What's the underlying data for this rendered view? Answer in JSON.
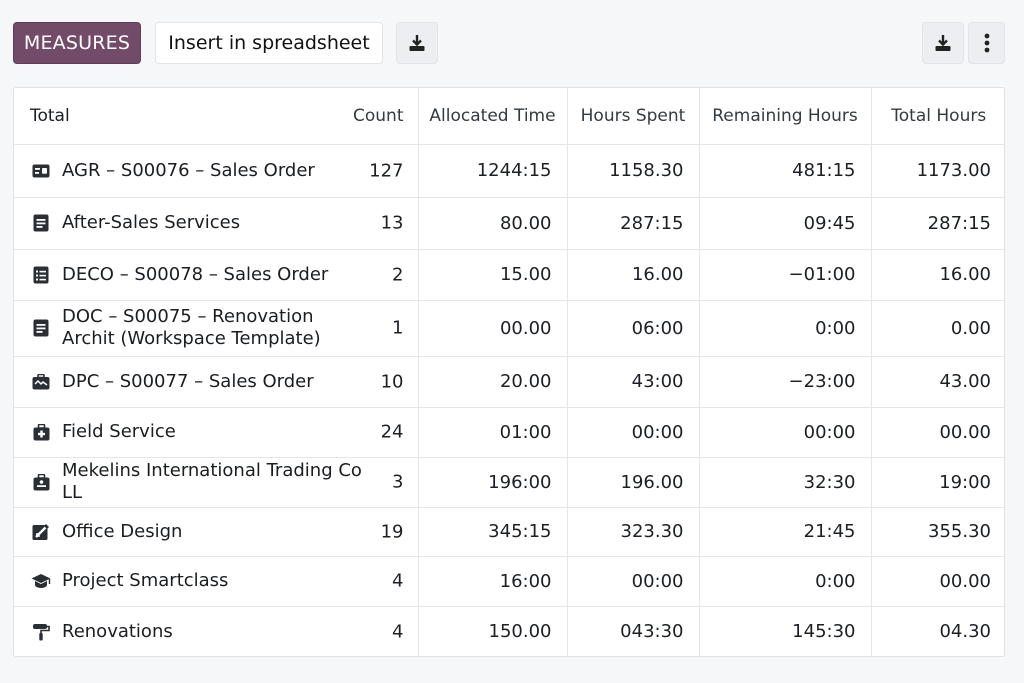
{
  "toolbar": {
    "measures_label": "MEASURES",
    "insert_label": "Insert in spreadsheet",
    "download_icon": "download-icon",
    "more_icon": "kebab-menu-icon"
  },
  "table": {
    "headers": {
      "total": "Total",
      "count": "Count",
      "allocated": "Allocated Time",
      "spent": "Hours Spent",
      "remaining": "Remaining Hours",
      "total_hours": "Total Hours"
    },
    "rows": [
      {
        "icon": "id-card-icon",
        "name": "AGR – S00076 – Sales Order",
        "count": "127",
        "allocated": "1244:15",
        "spent": "1158.30",
        "remaining": "481:15",
        "total_hours": "1173.00"
      },
      {
        "icon": "document-icon",
        "name": "After-Sales Services",
        "count": "13",
        "allocated": "80.00",
        "spent": "287:15",
        "remaining": "09:45",
        "total_hours": "287:15"
      },
      {
        "icon": "list-document-icon",
        "name": "DECO – S00078 – Sales Order",
        "count": "2",
        "allocated": "15.00",
        "spent": "16.00",
        "remaining": "−01:00",
        "total_hours": "16.00"
      },
      {
        "icon": "document-icon",
        "name": "DOC – S00075 – Renovation Archit (Workspace Template)",
        "count": "1",
        "allocated": "00.00",
        "spent": "06:00",
        "remaining": "0:00",
        "total_hours": "0.00"
      },
      {
        "icon": "briefcase-chart-icon",
        "name": "DPC – S00077 – Sales Order",
        "count": "10",
        "allocated": "20.00",
        "spent": "43:00",
        "remaining": "−23:00",
        "total_hours": "43.00"
      },
      {
        "icon": "medical-kit-icon",
        "name": "Field Service",
        "count": "24",
        "allocated": "01:00",
        "spent": "00:00",
        "remaining": "00:00",
        "total_hours": "00.00"
      },
      {
        "icon": "badge-icon",
        "name": "Mekelins International Trading Co LL",
        "count": "3",
        "allocated": "196:00",
        "spent": "196.00",
        "remaining": "32:30",
        "total_hours": "19:00"
      },
      {
        "icon": "design-pencil-icon",
        "name": "Office Design",
        "count": "19",
        "allocated": "345:15",
        "spent": "323.30",
        "remaining": "21:45",
        "total_hours": "355.30"
      },
      {
        "icon": "graduation-cap-icon",
        "name": "Project Smartclass",
        "count": "4",
        "allocated": "16:00",
        "spent": "00:00",
        "remaining": "0:00",
        "total_hours": "00.00"
      },
      {
        "icon": "paint-roller-icon",
        "name": "Renovations",
        "count": "4",
        "allocated": "150.00",
        "spent": "043:30",
        "remaining": "145:30",
        "total_hours": "04.30"
      }
    ]
  }
}
